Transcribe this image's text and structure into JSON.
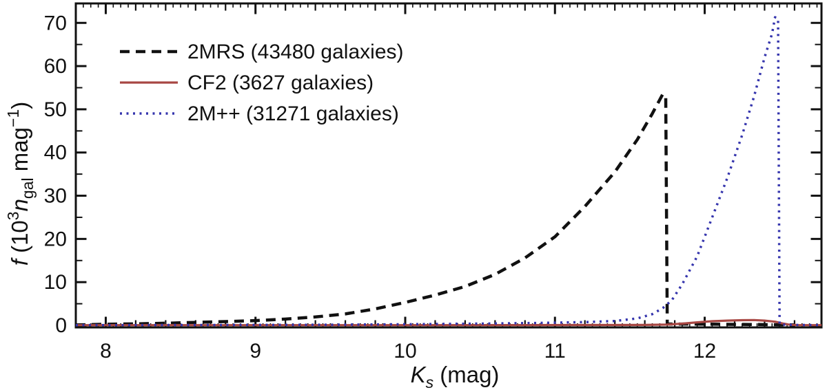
{
  "figure": {
    "background": "#ffffff",
    "frame_color": "#111111"
  },
  "chart_data": {
    "type": "line",
    "title": "",
    "xlabel": "Ks (mag)",
    "ylabel": "f (10^3 n_gal mag^-1)",
    "xlabel_parts": [
      {
        "t": "K",
        "italic": true
      },
      {
        "t": "s",
        "italic": true,
        "sub": true
      },
      {
        "t": " (mag)"
      }
    ],
    "ylabel_parts": [
      {
        "t": "f",
        "italic": true
      },
      {
        "t": " (10"
      },
      {
        "t": "3",
        "sup": true
      },
      {
        "t": "n",
        "italic": true
      },
      {
        "t": "gal",
        "sub": true
      },
      {
        "t": " mag"
      },
      {
        "t": "−1",
        "sup": true
      },
      {
        "t": ")"
      }
    ],
    "x_range": [
      7.8,
      12.78
    ],
    "y_range": [
      0,
      74.5
    ],
    "x_major_ticks": [
      8,
      9,
      10,
      11,
      12
    ],
    "x_medium_step": 0.2,
    "x_small_step": 0.05,
    "y_major_ticks": [
      0,
      10,
      20,
      30,
      40,
      50,
      60,
      70
    ],
    "y_minor_step": 5,
    "grid": false,
    "legend_position": "upper-left",
    "series": [
      {
        "name": "2MRS",
        "label": "2MRS (43480 galaxies)",
        "color": "#111111",
        "style": "dashed",
        "points": [
          [
            7.8,
            0.1
          ],
          [
            8.0,
            0.25
          ],
          [
            8.2,
            0.35
          ],
          [
            8.4,
            0.5
          ],
          [
            8.6,
            0.68
          ],
          [
            8.8,
            0.88
          ],
          [
            9.0,
            1.1
          ],
          [
            9.2,
            1.45
          ],
          [
            9.4,
            1.95
          ],
          [
            9.6,
            2.65
          ],
          [
            9.8,
            3.8
          ],
          [
            10.0,
            5.3
          ],
          [
            10.2,
            7.0
          ],
          [
            10.4,
            9.0
          ],
          [
            10.6,
            11.8
          ],
          [
            10.8,
            15.6
          ],
          [
            11.0,
            20.5
          ],
          [
            11.2,
            27.5
          ],
          [
            11.4,
            35.5
          ],
          [
            11.55,
            43.0
          ],
          [
            11.65,
            49.0
          ],
          [
            11.72,
            53.5
          ],
          [
            11.74,
            53.0
          ],
          [
            11.75,
            0.3
          ],
          [
            11.9,
            0.3
          ],
          [
            12.1,
            0.25
          ],
          [
            12.3,
            0.2
          ],
          [
            12.5,
            0.15
          ],
          [
            12.6,
            0.1
          ]
        ]
      },
      {
        "name": "CF2",
        "label": "CF2 (3627 galaxies)",
        "color": "#a84743",
        "style": "solid",
        "points": [
          [
            7.8,
            0.05
          ],
          [
            9.0,
            0.05
          ],
          [
            10.0,
            0.05
          ],
          [
            10.8,
            0.06
          ],
          [
            11.3,
            0.08
          ],
          [
            11.6,
            0.1
          ],
          [
            11.75,
            0.18
          ],
          [
            11.85,
            0.4
          ],
          [
            11.95,
            0.7
          ],
          [
            12.05,
            0.95
          ],
          [
            12.15,
            1.1
          ],
          [
            12.25,
            1.2
          ],
          [
            12.33,
            1.22
          ],
          [
            12.4,
            1.1
          ],
          [
            12.47,
            0.85
          ],
          [
            12.52,
            0.45
          ],
          [
            12.57,
            0.12
          ],
          [
            12.62,
            0.06
          ],
          [
            12.78,
            0.05
          ]
        ]
      },
      {
        "name": "2M++",
        "label": "2M++ (31271 galaxies)",
        "color": "#3535ad",
        "style": "dotted",
        "points": [
          [
            7.8,
            0.05
          ],
          [
            8.5,
            0.08
          ],
          [
            9.0,
            0.1
          ],
          [
            9.5,
            0.15
          ],
          [
            10.0,
            0.25
          ],
          [
            10.5,
            0.4
          ],
          [
            10.9,
            0.55
          ],
          [
            11.2,
            0.75
          ],
          [
            11.4,
            1.0
          ],
          [
            11.55,
            1.6
          ],
          [
            11.65,
            2.6
          ],
          [
            11.72,
            4.0
          ],
          [
            11.78,
            5.8
          ],
          [
            11.85,
            9.5
          ],
          [
            11.95,
            16.0
          ],
          [
            12.05,
            25.0
          ],
          [
            12.15,
            34.0
          ],
          [
            12.25,
            44.0
          ],
          [
            12.33,
            53.0
          ],
          [
            12.4,
            62.0
          ],
          [
            12.45,
            67.5
          ],
          [
            12.47,
            71.3
          ],
          [
            12.49,
            71.0
          ],
          [
            12.5,
            0.2
          ],
          [
            12.6,
            0.1
          ],
          [
            12.78,
            0.05
          ]
        ]
      }
    ]
  },
  "legend": {
    "items": [
      {
        "label": "2MRS (43480 galaxies)"
      },
      {
        "label": "CF2 (3627 galaxies)"
      },
      {
        "label": "2M++ (31271 galaxies)"
      }
    ]
  }
}
